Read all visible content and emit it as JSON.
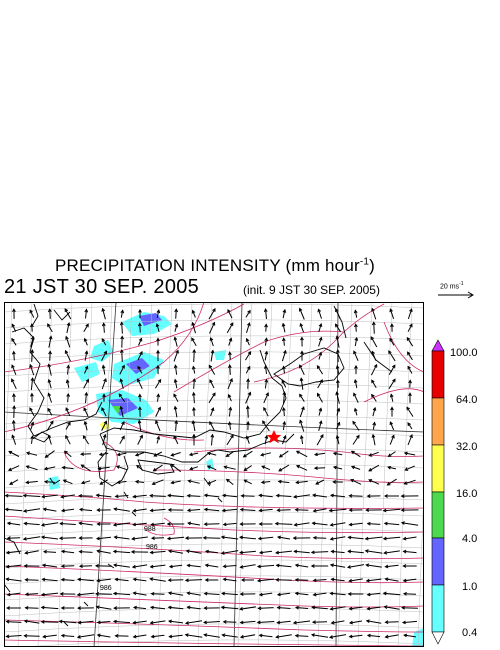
{
  "header": {
    "title_main": "PRECIPITATION INTENSITY (mm hour",
    "title_exp": "-1",
    "title_close": ")",
    "valid_time": "21 JST 30 SEP. 2005",
    "init_time": "(init. 9 JST 30 SEP. 2005)"
  },
  "wind_reference": {
    "label": "20 ms",
    "exp": "-1"
  },
  "map": {
    "pressure_labels": [
      "988",
      "986",
      "986"
    ],
    "marker": "red-star",
    "colors": {
      "coast": "#000000",
      "isobar": "#cc2a6a",
      "grid": "#bdbdbd"
    }
  },
  "legend": {
    "levels": [
      "100.0",
      "64.0",
      "32.0",
      "16.0",
      "4.0",
      "1.0",
      "0.4"
    ],
    "colors": [
      "#cc33ff",
      "#e60000",
      "#ffa64d",
      "#ffff4d",
      "#4dd94d",
      "#6464ff",
      "#66ffff",
      "#ffffff"
    ]
  }
}
